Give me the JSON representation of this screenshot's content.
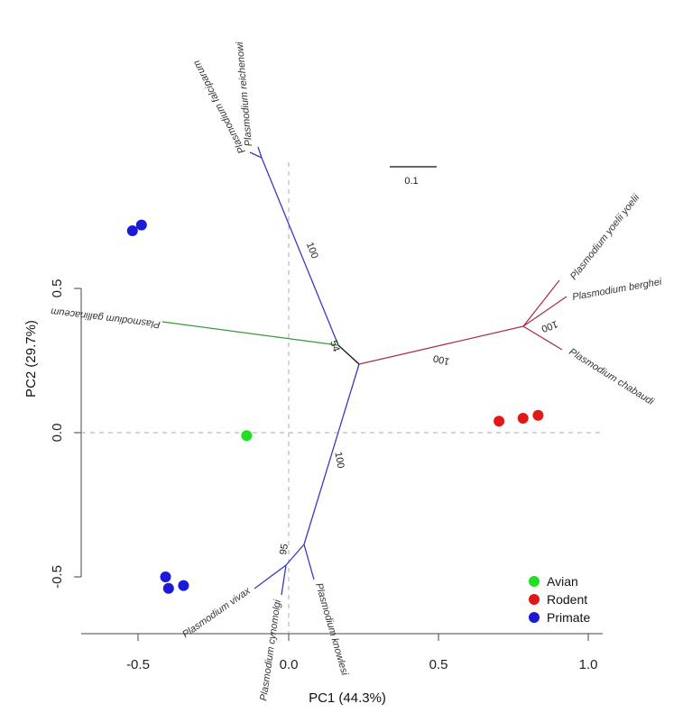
{
  "chart_data": {
    "type": "scatter",
    "xlabel": "PC1 (44.3%)",
    "ylabel": "PC2 (29.7%)",
    "xlim": [
      -0.7,
      1.05
    ],
    "ylim": [
      -0.68,
      0.62
    ],
    "x_ticks": [
      -0.5,
      0.0,
      0.5,
      1.0
    ],
    "x_tick_labels": [
      "-0.5",
      "0.0",
      "0.5",
      "1.0"
    ],
    "y_ticks": [
      -0.5,
      0.0,
      0.5
    ],
    "y_tick_labels": [
      "-0.5",
      "0.0",
      "0.5"
    ],
    "reference_lines": {
      "x": 0,
      "y": 0,
      "style": "dashed"
    },
    "legend_position": "bottom-right",
    "series": [
      {
        "name": "Avian",
        "color": "#22dd22",
        "points": [
          [
            -0.14,
            -0.01
          ]
        ]
      },
      {
        "name": "Rodent",
        "color": "#e01818",
        "points": [
          [
            0.7,
            0.04
          ],
          [
            0.78,
            0.05
          ],
          [
            0.83,
            0.06
          ]
        ]
      },
      {
        "name": "Primate",
        "color": "#1a1ad8",
        "points": [
          [
            -0.52,
            0.7
          ],
          [
            -0.49,
            0.72
          ],
          [
            -0.41,
            -0.5
          ],
          [
            -0.4,
            -0.54
          ],
          [
            -0.35,
            -0.53
          ]
        ]
      }
    ],
    "tree": {
      "scale_bar_label": "0.1",
      "support_values": [
        "100",
        "54",
        "100",
        "100",
        "100",
        "95"
      ],
      "leaves": [
        "Plasmodium reichenowi",
        "Plasmodium falciparum",
        "Plasmodium gallinaceum",
        "Plasmodium yoelii yoelii",
        "Plasmodium berghei",
        "Plasmodium chabaudi",
        "Plasmodium vivax",
        "Plasmodium cynomolgi",
        "Plasmodium knowlesi"
      ]
    }
  }
}
